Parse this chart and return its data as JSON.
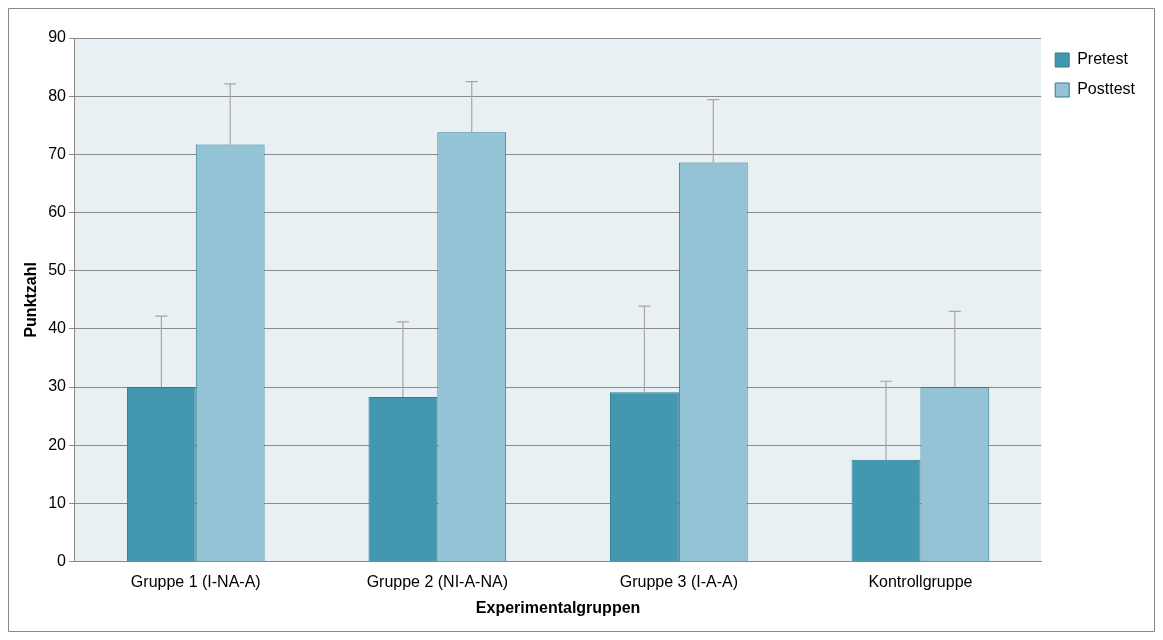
{
  "chart_data": {
    "type": "bar",
    "xlabel": "Experimentalgruppen",
    "ylabel": "Punktzahl",
    "categories": [
      "Gruppe 1 (I-NA-A)",
      "Gruppe 2 (NI-A-NA)",
      "Gruppe 3 (I-A-A)",
      "Kontrollgruppe"
    ],
    "series": [
      {
        "name": "Pretest",
        "color": "#4398b0",
        "values": [
          30,
          28.3,
          29.1,
          17.5
        ],
        "errors": [
          [
            30,
            42.2
          ],
          [
            28.3,
            41.2
          ],
          [
            29.1,
            43.9
          ],
          [
            17.5,
            31
          ]
        ]
      },
      {
        "name": "Posttest",
        "color": "#93c3d5",
        "values": [
          71.7,
          73.8,
          68.6,
          30
        ],
        "errors": [
          [
            71.7,
            82.1
          ],
          [
            73.8,
            82.5
          ],
          [
            68.6,
            79.4
          ],
          [
            30,
            43
          ]
        ]
      }
    ],
    "ylim": [
      0,
      90
    ],
    "yticks": [
      0,
      10,
      20,
      30,
      40,
      50,
      60,
      70,
      80,
      90
    ],
    "grid": "y",
    "legend": "top right"
  }
}
